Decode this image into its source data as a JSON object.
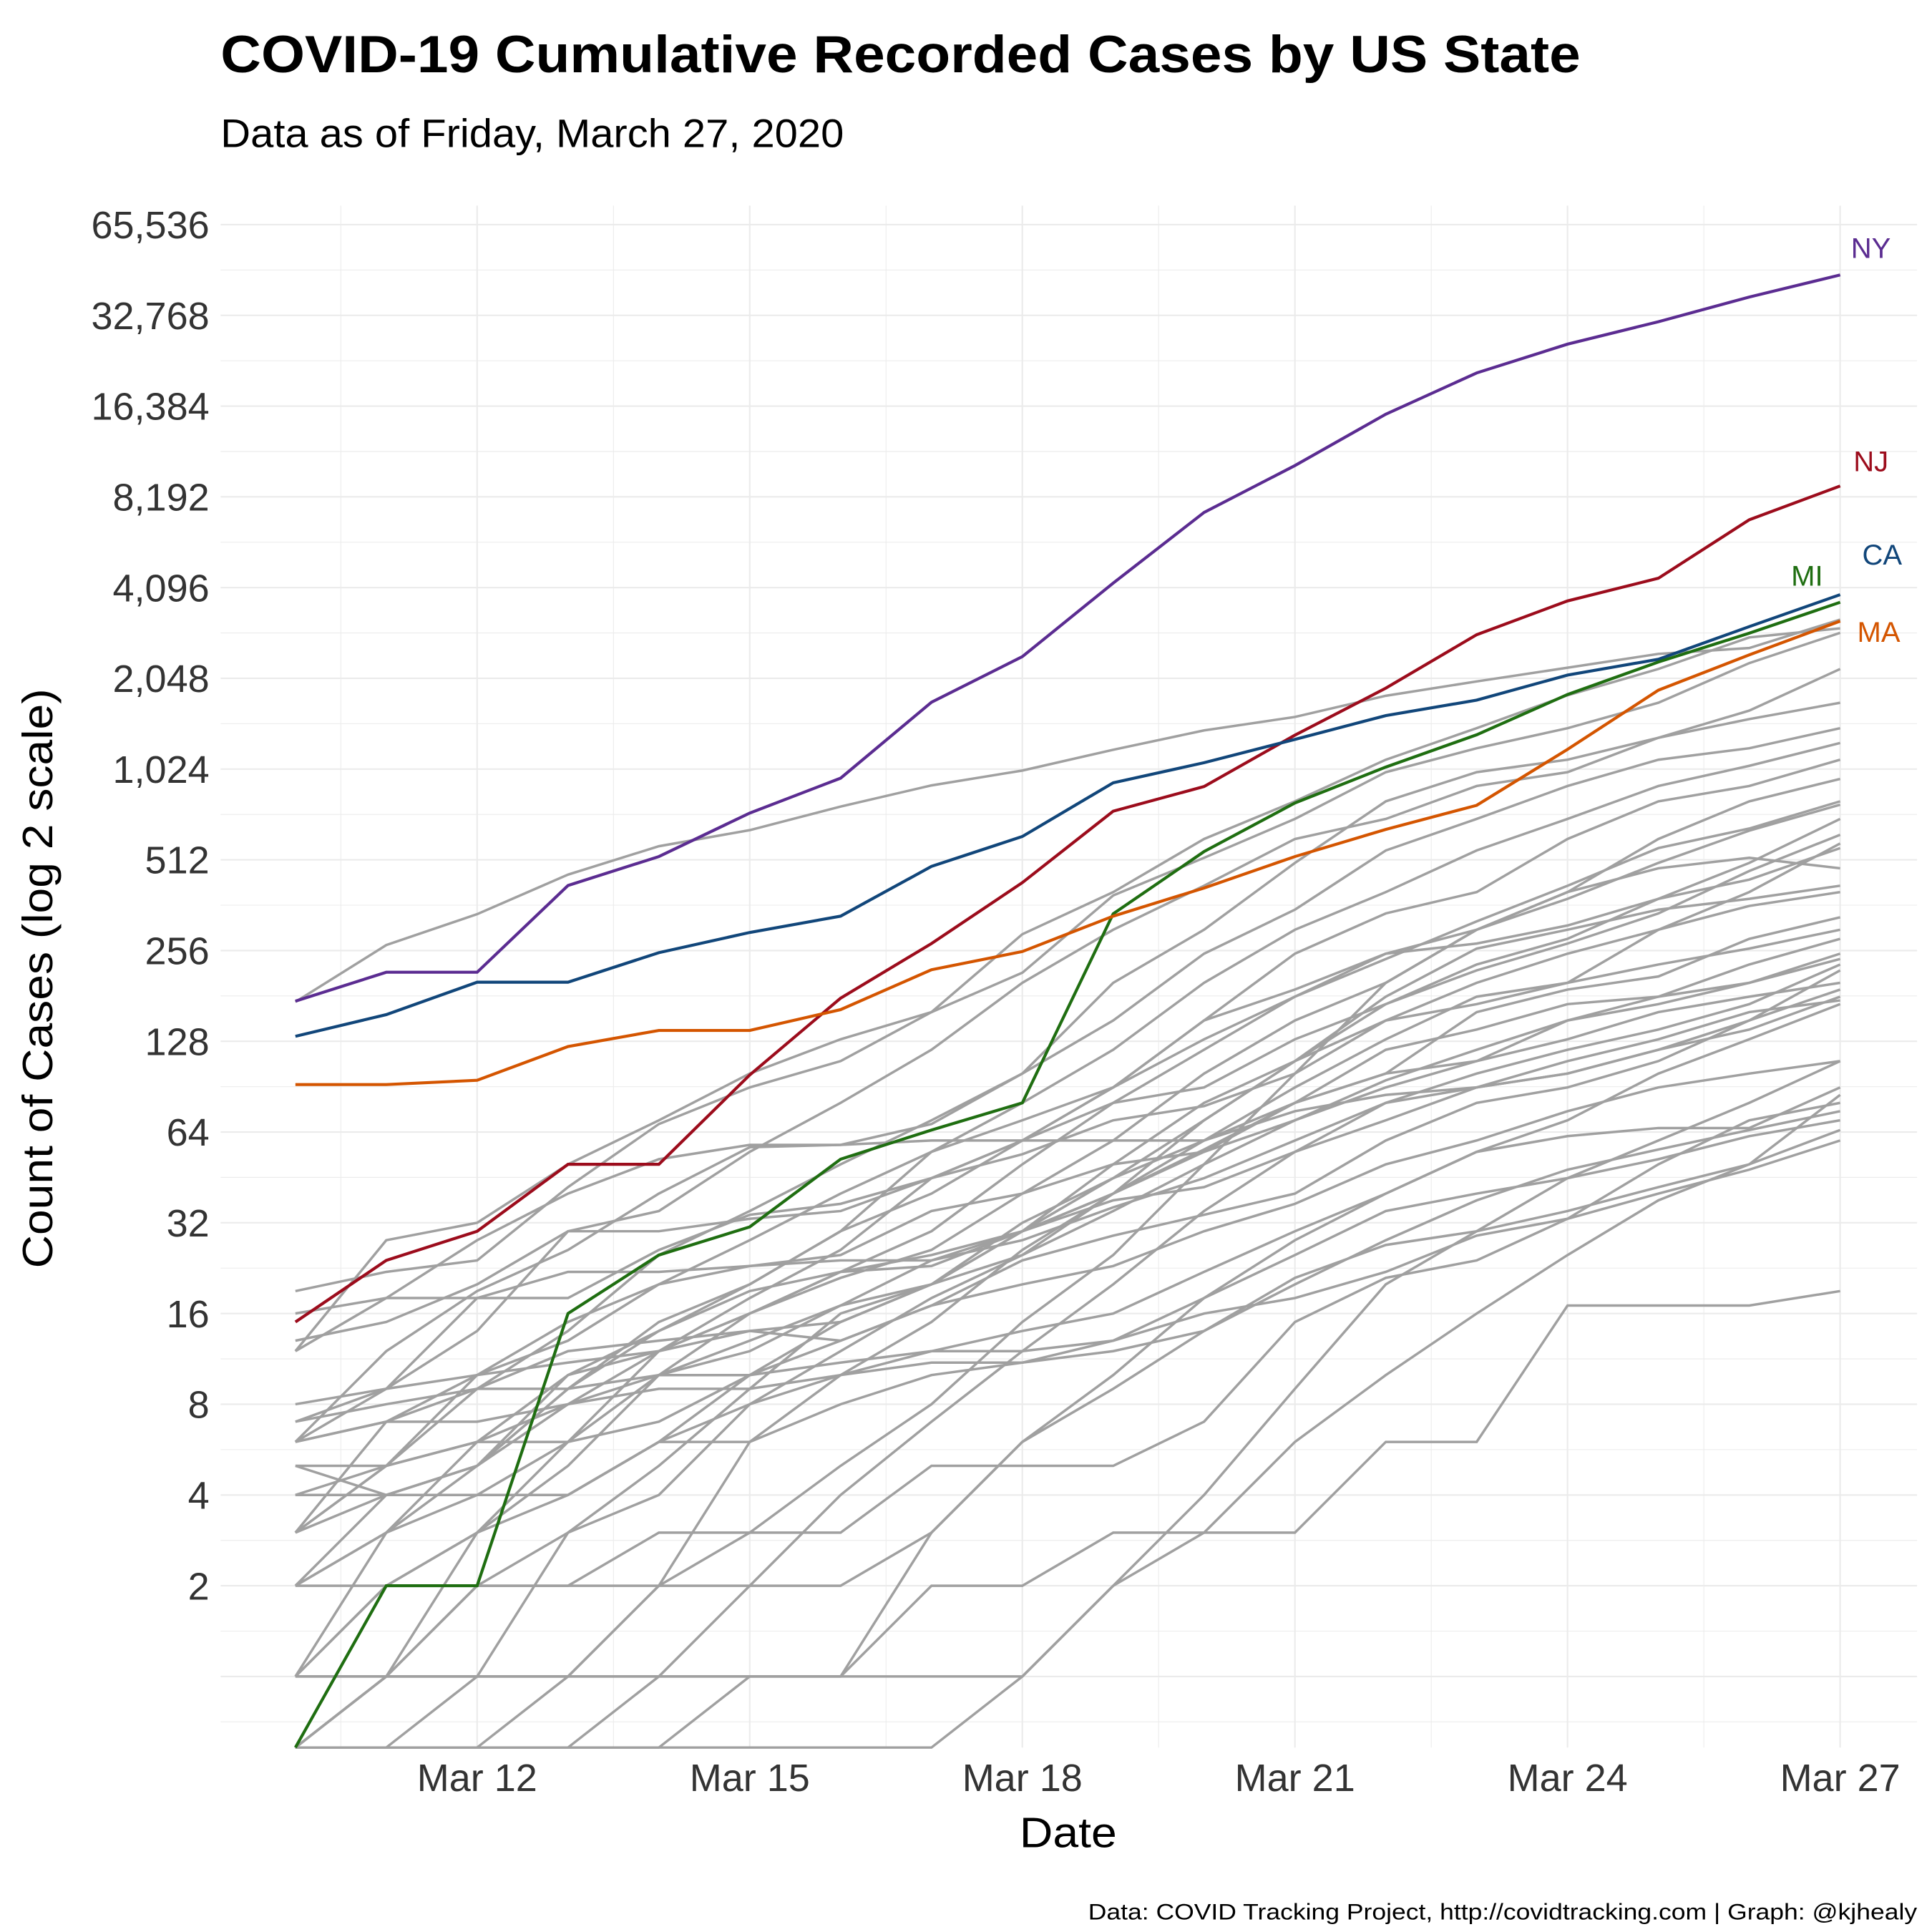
{
  "chart_data": {
    "type": "line",
    "title": "COVID-19 Cumulative Recorded Cases by US State",
    "subtitle": "Data as of Friday, March 27, 2020",
    "xlabel": "Date",
    "ylabel": "Count of Cases (log 2 scale)",
    "caption": "Data: COVID Tracking Project, http://covidtracking.com | Graph: @kjhealy",
    "y_scale": "log2",
    "grid": true,
    "x": [
      "Mar 10",
      "Mar 11",
      "Mar 12",
      "Mar 13",
      "Mar 14",
      "Mar 15",
      "Mar 16",
      "Mar 17",
      "Mar 18",
      "Mar 19",
      "Mar 20",
      "Mar 21",
      "Mar 22",
      "Mar 23",
      "Mar 24",
      "Mar 25",
      "Mar 26",
      "Mar 27"
    ],
    "x_ticks": [
      "Mar 12",
      "Mar 15",
      "Mar 18",
      "Mar 21",
      "Mar 24",
      "Mar 27"
    ],
    "y_ticks": [
      {
        "value": 2,
        "label": "2"
      },
      {
        "value": 4,
        "label": "4"
      },
      {
        "value": 8,
        "label": "8"
      },
      {
        "value": 16,
        "label": "16"
      },
      {
        "value": 32,
        "label": "32"
      },
      {
        "value": 64,
        "label": "64"
      },
      {
        "value": 128,
        "label": "128"
      },
      {
        "value": 256,
        "label": "256"
      },
      {
        "value": 512,
        "label": "512"
      },
      {
        "value": 1024,
        "label": "1,024"
      },
      {
        "value": 2048,
        "label": "2,048"
      },
      {
        "value": 4096,
        "label": "4,096"
      },
      {
        "value": 8192,
        "label": "8,192"
      },
      {
        "value": 16384,
        "label": "16,384"
      },
      {
        "value": 32768,
        "label": "32,768"
      },
      {
        "value": 65536,
        "label": "65,536"
      }
    ],
    "highlighted_series": [
      {
        "name": "NY",
        "color": "#5b2c91",
        "values": [
          174,
          217,
          217,
          421,
          525,
          732,
          955,
          1706,
          2418,
          4240,
          7270,
          10400,
          15400,
          21100,
          26300,
          31200,
          37700,
          44600
        ]
      },
      {
        "name": "NJ",
        "color": "#9c0c1c",
        "values": [
          15,
          24,
          30,
          50,
          50,
          99,
          178,
          270,
          430,
          742,
          896,
          1327,
          1900,
          2858,
          3700,
          4400,
          6876,
          8900
        ]
      },
      {
        "name": "CA",
        "color": "#11467a",
        "values": [
          133,
          157,
          201,
          201,
          252,
          294,
          333,
          487,
          612,
          922,
          1075,
          1285,
          1540,
          1733,
          2100,
          2370,
          3040,
          3880
        ]
      },
      {
        "name": "MI",
        "color": "#1f6e11",
        "values": [
          0,
          2,
          2,
          16,
          25,
          31,
          52,
          65,
          80,
          339,
          545,
          790,
          1040,
          1330,
          1810,
          2320,
          2890,
          3660
        ]
      },
      {
        "name": "MA",
        "color": "#d45500",
        "values": [
          92,
          92,
          95,
          123,
          139,
          139,
          163,
          221,
          254,
          333,
          413,
          525,
          646,
          776,
          1190,
          1870,
          2450,
          3170
        ]
      }
    ],
    "other_series_color": "#a0a0a0",
    "other_series": [
      [
        173,
        267,
        338,
        457,
        568,
        642,
        769,
        904,
        1012,
        1187,
        1376,
        1524,
        1793,
        2000,
        2221,
        2469,
        2580,
        3207
      ],
      [
        12,
        28,
        32,
        50,
        70,
        100,
        130,
        160,
        216,
        390,
        520,
        700,
        1000,
        1200,
        1400,
        1700,
        2300,
        2900
      ],
      [
        19,
        22,
        24,
        42,
        68,
        90,
        110,
        160,
        290,
        400,
        600,
        800,
        1100,
        1400,
        1800,
        2200,
        2800,
        3000
      ],
      [
        6,
        12,
        19,
        26,
        40,
        57,
        58,
        68,
        100,
        200,
        300,
        500,
        800,
        1000,
        1100,
        1300,
        1600,
        2200
      ],
      [
        8,
        9,
        14,
        30,
        35,
        55,
        80,
        120,
        200,
        300,
        420,
        600,
        700,
        900,
        1000,
        1300,
        1500,
        1700
      ],
      [
        3,
        5,
        9,
        14,
        25,
        35,
        50,
        70,
        100,
        150,
        250,
        350,
        550,
        700,
        900,
        1100,
        1200,
        1400
      ],
      [
        2,
        4,
        5,
        9,
        15,
        20,
        30,
        55,
        80,
        120,
        200,
        300,
        400,
        550,
        700,
        900,
        1050,
        1250
      ],
      [
        7,
        9,
        10,
        13,
        20,
        28,
        40,
        55,
        70,
        90,
        150,
        250,
        340,
        400,
        600,
        800,
        900,
        1100
      ],
      [
        5,
        5,
        6,
        8,
        10,
        16,
        21,
        26,
        40,
        60,
        100,
        150,
        200,
        300,
        400,
        600,
        800,
        950
      ],
      [
        1,
        3,
        6,
        10,
        12,
        16,
        22,
        30,
        50,
        80,
        120,
        180,
        240,
        320,
        420,
        560,
        650,
        800
      ],
      [
        0,
        1,
        3,
        6,
        12,
        18,
        26,
        45,
        60,
        90,
        130,
        180,
        250,
        300,
        380,
        500,
        640,
        780
      ],
      [
        13,
        15,
        20,
        30,
        30,
        33,
        35,
        45,
        60,
        90,
        150,
        190,
        250,
        270,
        310,
        380,
        500,
        700
      ],
      [
        4,
        4,
        4,
        6,
        10,
        13,
        17,
        24,
        30,
        50,
        80,
        110,
        170,
        220,
        270,
        340,
        470,
        620
      ],
      [
        6,
        7,
        9,
        12,
        13,
        14,
        15,
        20,
        30,
        45,
        70,
        110,
        150,
        200,
        250,
        300,
        400,
        580
      ],
      [
        2,
        3,
        5,
        9,
        14,
        20,
        30,
        40,
        60,
        80,
        90,
        130,
        170,
        230,
        280,
        380,
        440,
        560
      ],
      [
        1,
        1,
        1,
        1,
        2,
        3,
        5,
        8,
        15,
        25,
        50,
        100,
        200,
        300,
        400,
        480,
        520,
        480
      ],
      [
        0,
        0,
        1,
        3,
        5,
        9,
        16,
        20,
        25,
        40,
        70,
        110,
        180,
        260,
        300,
        350,
        380,
        420
      ],
      [
        0,
        0,
        0,
        1,
        2,
        6,
        10,
        15,
        26,
        40,
        60,
        90,
        130,
        180,
        200,
        300,
        360,
        400
      ],
      [
        1,
        2,
        3,
        4,
        6,
        10,
        15,
        20,
        32,
        45,
        60,
        80,
        100,
        160,
        190,
        210,
        280,
        330
      ],
      [
        0,
        1,
        2,
        3,
        4,
        8,
        12,
        18,
        25,
        35,
        50,
        70,
        90,
        110,
        150,
        180,
        230,
        280
      ],
      [
        3,
        4,
        5,
        8,
        12,
        16,
        22,
        23,
        30,
        40,
        55,
        70,
        95,
        120,
        150,
        170,
        200,
        250
      ],
      [
        0,
        0,
        0,
        0,
        1,
        2,
        4,
        7,
        12,
        20,
        35,
        55,
        80,
        100,
        120,
        140,
        170,
        230
      ],
      [
        16,
        18,
        18,
        22,
        22,
        23,
        24,
        24,
        28,
        36,
        45,
        60,
        80,
        90,
        100,
        120,
        140,
        180
      ],
      [
        5,
        4,
        5,
        10,
        14,
        19,
        22,
        25,
        30,
        38,
        42,
        55,
        70,
        90,
        110,
        130,
        160,
        175
      ],
      [
        2,
        2,
        2,
        2,
        2,
        2,
        2,
        3,
        6,
        10,
        18,
        28,
        40,
        55,
        70,
        100,
        130,
        170
      ],
      [
        1,
        1,
        1,
        1,
        1,
        1,
        1,
        1,
        1,
        2,
        4,
        9,
        20,
        30,
        45,
        60,
        80,
        110
      ],
      [
        0,
        0,
        0,
        0,
        0,
        1,
        1,
        2,
        2,
        3,
        3,
        6,
        10,
        16,
        25,
        38,
        50,
        85
      ],
      [
        0,
        1,
        1,
        1,
        1,
        1,
        1,
        3,
        6,
        9,
        14,
        20,
        28,
        38,
        48,
        56,
        65,
        75
      ],
      [
        4,
        4,
        4,
        4,
        6,
        6,
        8,
        10,
        11,
        13,
        18,
        25,
        35,
        40,
        45,
        52,
        62,
        70
      ],
      [
        6,
        7,
        7,
        8,
        9,
        9,
        10,
        11,
        11,
        12,
        14,
        21,
        27,
        30,
        35,
        42,
        50,
        65
      ],
      [
        0,
        0,
        0,
        0,
        0,
        0,
        0,
        0,
        1,
        2,
        3,
        3,
        6,
        6,
        17,
        17,
        17,
        19
      ],
      [
        7,
        8,
        9,
        9,
        10,
        10,
        11,
        12,
        12,
        13,
        16,
        18,
        22,
        29,
        33,
        40,
        48,
        60
      ],
      [
        3,
        5,
        6,
        6,
        7,
        10,
        13,
        17,
        20,
        23,
        30,
        37,
        50,
        60,
        75,
        90,
        100,
        110
      ],
      [
        4,
        5,
        10,
        15,
        20,
        23,
        25,
        35,
        40,
        50,
        55,
        80,
        100,
        110,
        130,
        160,
        180,
        200
      ],
      [
        12,
        18,
        28,
        40,
        52,
        58,
        58,
        60,
        60,
        60,
        60,
        75,
        85,
        90,
        100,
        120,
        150,
        190
      ],
      [
        3,
        7,
        10,
        11,
        12,
        14,
        13,
        17,
        24,
        29,
        34,
        40,
        60,
        80,
        90,
        110,
        150,
        220
      ],
      [
        6,
        9,
        18,
        18,
        26,
        34,
        37,
        45,
        54,
        70,
        78,
        100,
        150,
        170,
        200,
        230,
        260,
        300
      ],
      [
        1,
        2,
        3,
        5,
        10,
        12,
        17,
        20,
        30,
        40,
        56,
        80,
        120,
        140,
        170,
        180,
        200,
        240
      ],
      [
        0,
        1,
        2,
        2,
        3,
        3,
        3,
        5,
        5,
        5,
        7,
        15,
        21,
        24,
        33,
        50,
        70,
        80
      ],
      [
        2,
        3,
        4,
        4,
        6,
        8,
        10,
        12,
        14,
        16,
        22,
        30,
        40,
        55,
        62,
        66,
        66,
        90
      ]
    ]
  }
}
